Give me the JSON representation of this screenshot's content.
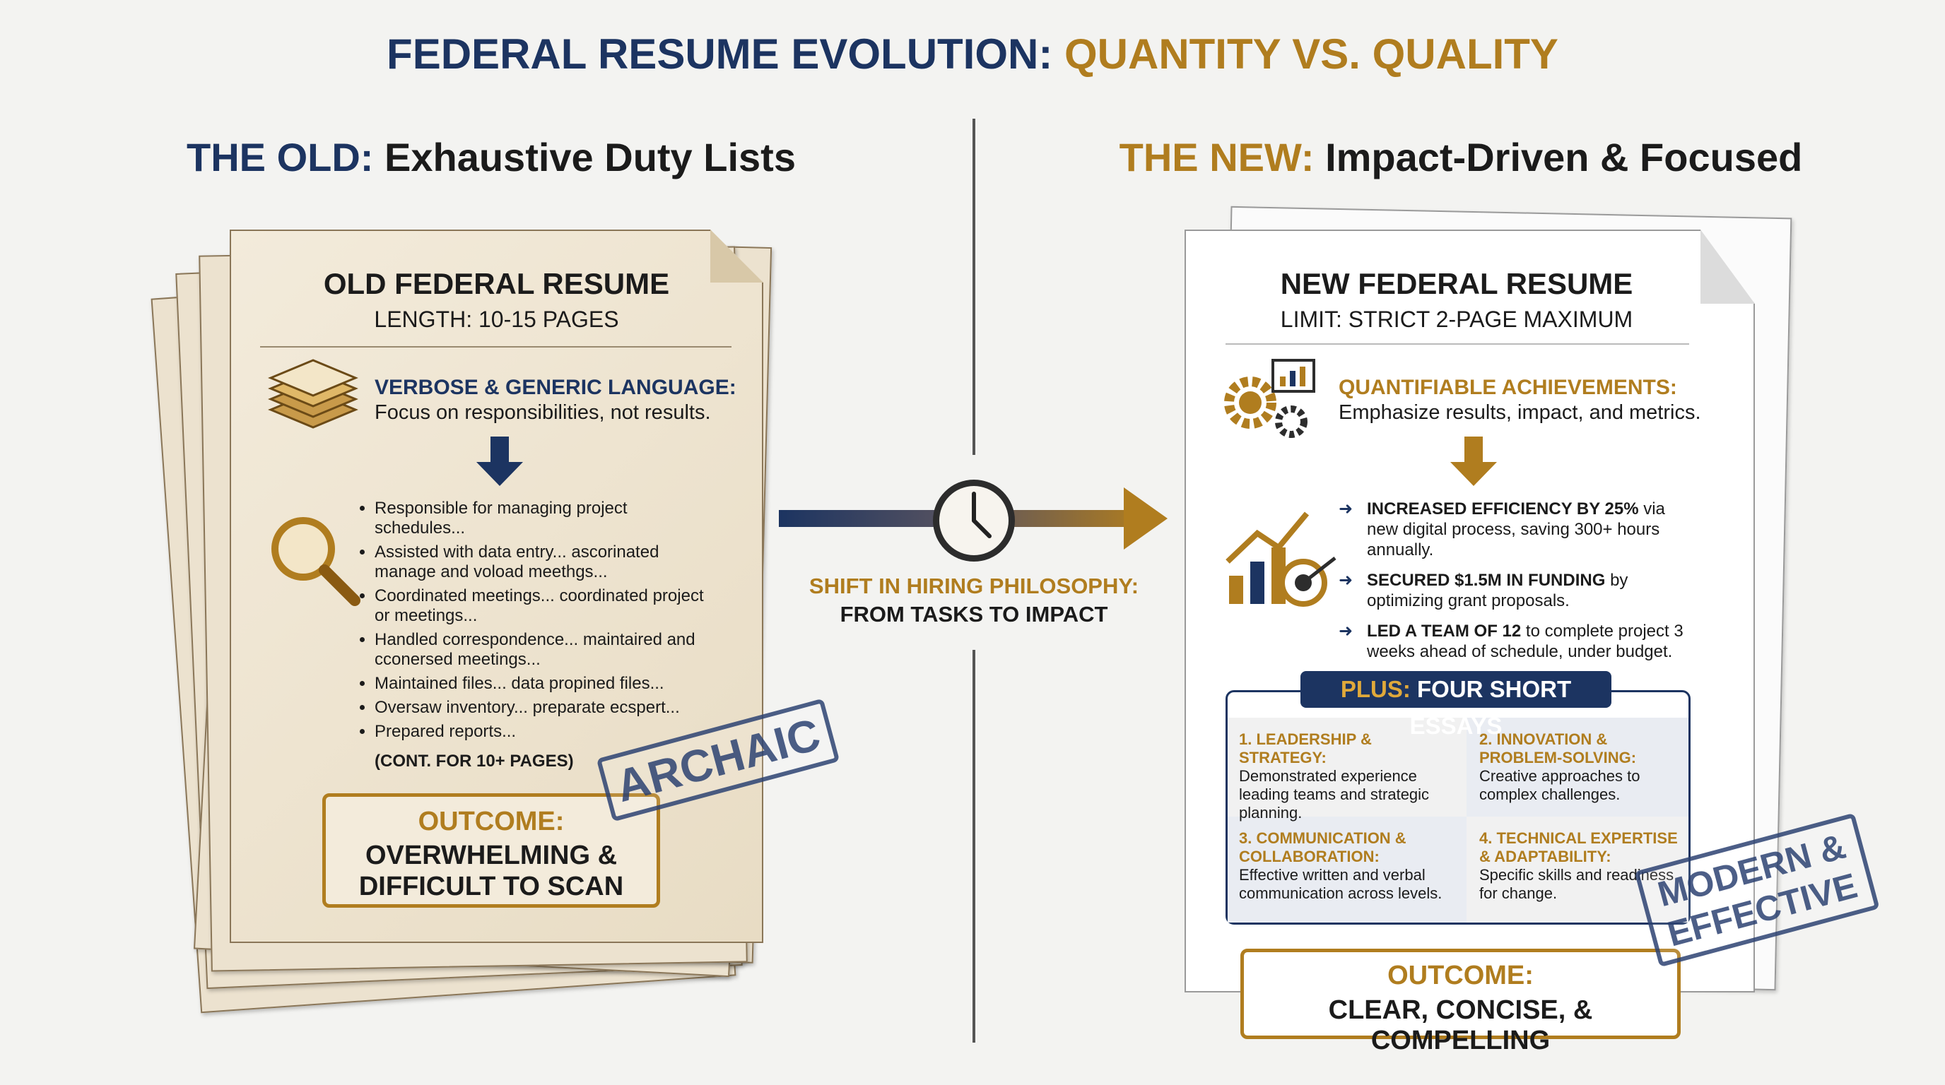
{
  "title": {
    "part1": "FEDERAL RESUME EVOLUTION:",
    "part2": "QUANTITY VS. QUALITY"
  },
  "old": {
    "heading_label": "THE OLD:",
    "heading": "Exhaustive Duty Lists",
    "doc_title": "OLD FEDERAL RESUME",
    "doc_subtitle": "LENGTH: 10-15 PAGES",
    "point_title": "VERBOSE & GENERIC LANGUAGE:",
    "point_text": "Focus on responsibilities, not results.",
    "bullets": [
      "Responsible for managing project schedules...",
      "Assisted with data entry... ascorinated manage and voload meethgs...",
      "Coordinated meetings... coordinated project or meetings...",
      "Handled correspondence... maintaired and cconersed meetings...",
      "Maintained files... data propined files...",
      "Oversaw inventory... preparate ecspert...",
      "Prepared reports..."
    ],
    "continuation": "(CONT. FOR 10+ PAGES)",
    "outcome_label": "OUTCOME:",
    "outcome": "OVERWHELMING & DIFFICULT TO SCAN",
    "stamp": "ARCHAIC"
  },
  "shift": {
    "label": "SHIFT IN HIRING PHILOSOPHY:",
    "text": "FROM TASKS TO IMPACT"
  },
  "new": {
    "heading_label": "THE NEW:",
    "heading": "Impact-Driven & Focused",
    "doc_title": "NEW FEDERAL RESUME",
    "doc_subtitle": "LIMIT: STRICT 2-PAGE MAXIMUM",
    "point_title": "QUANTIFIABLE ACHIEVEMENTS:",
    "point_text": "Emphasize results, impact, and metrics.",
    "achievements": [
      {
        "highlight": "INCREASED EFFICIENCY BY 25%",
        "text": "via new digital process, saving 300+ hours annually."
      },
      {
        "highlight": "SECURED $1.5M IN FUNDING",
        "text": "by optimizing grant proposals."
      },
      {
        "highlight": "LED A TEAM OF 12",
        "text": "to complete project 3 weeks ahead of schedule, under budget."
      }
    ],
    "essays_label": "PLUS:",
    "essays_title": "FOUR SHORT ESSAYS",
    "essays": [
      {
        "title": "1. LEADERSHIP & STRATEGY:",
        "text": "Demonstrated experience leading teams and strategic planning."
      },
      {
        "title": "2. INNOVATION & PROBLEM-SOLVING:",
        "text": "Creative approaches to complex challenges."
      },
      {
        "title": "3. COMMUNICATION & COLLABORATION:",
        "text": "Effective written and verbal communication across levels."
      },
      {
        "title": "4. TECHNICAL EXPERTISE & ADAPTABILITY:",
        "text": "Specific skills and readiness for change."
      }
    ],
    "outcome_label": "OUTCOME:",
    "outcome": "CLEAR, CONCISE, & COMPELLING",
    "stamp": "MODERN & EFFECTIVE"
  }
}
